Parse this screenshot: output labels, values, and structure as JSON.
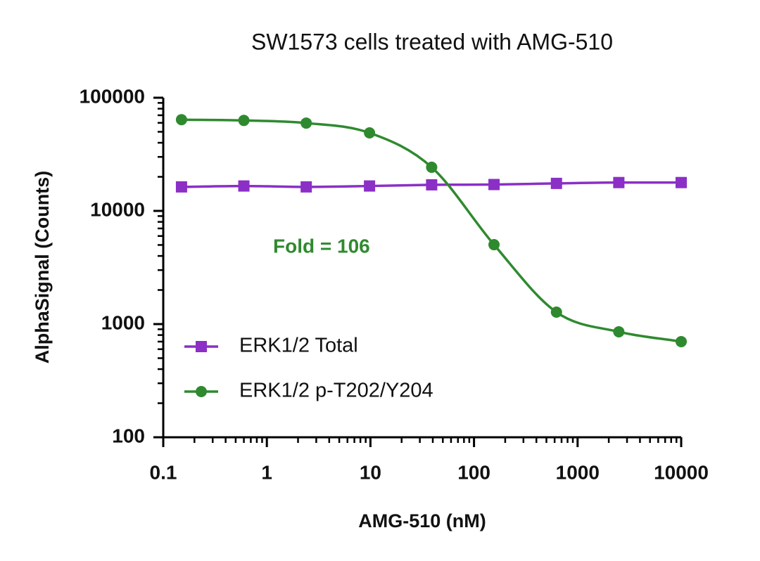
{
  "chart_data": {
    "type": "scatter",
    "title": "SW1573 cells treated with AMG-510",
    "x_label": "AMG-510 (nM)",
    "y_label": "AlphaSignal (Counts)",
    "annotation": "Fold = 106",
    "x_scale": "log",
    "y_scale": "log",
    "xlim": [
      0.1,
      10000
    ],
    "ylim": [
      100,
      100000
    ],
    "xticks": [
      0.1,
      1,
      10,
      100,
      1000,
      10000
    ],
    "yticks": [
      100,
      1000,
      10000,
      100000
    ],
    "legend_position": "lower left",
    "series": [
      {
        "name": "ERK1/2 Total",
        "color": "#8b2fc6",
        "marker": "square",
        "x": [
          0.15,
          0.6,
          2.4,
          9.8,
          39,
          156,
          625,
          2500,
          10000
        ],
        "values": [
          16300,
          16600,
          16300,
          16600,
          17000,
          17100,
          17500,
          17800,
          17800
        ]
      },
      {
        "name": "ERK1/2 p-T202/Y204",
        "color": "#2f8a2f",
        "marker": "circle",
        "x": [
          0.15,
          0.6,
          2.4,
          9.8,
          39,
          156,
          625,
          2500,
          10000
        ],
        "values": [
          64000,
          63000,
          59700,
          48900,
          24300,
          5030,
          1275,
          855,
          700
        ]
      }
    ]
  }
}
